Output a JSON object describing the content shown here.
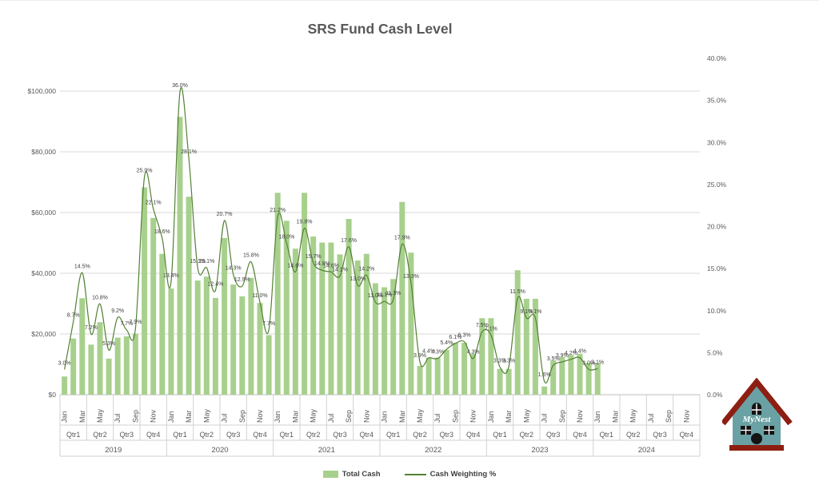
{
  "title": "SRS Fund Cash Level",
  "legend": {
    "items": [
      {
        "label": "Total Cash",
        "swatch": "bar-swatch-icon"
      },
      {
        "label": "Cash Weighting %",
        "swatch": "line-swatch-icon"
      }
    ]
  },
  "logo": {
    "text": "MyNest",
    "colors": {
      "body": "#6aa1a4",
      "roof": "#8c1e12",
      "window": "#141414",
      "pane": "#ffffff"
    }
  },
  "colors": {
    "bar_fill": "#a8d08d",
    "line_stroke": "#538135",
    "gridline": "#d9d9d9",
    "axis_line": "#bfbfbf",
    "axis_divider": "#d0d0d0",
    "axis_text": "#595959",
    "data_label_text": "#404040",
    "title_text": "#595959"
  },
  "chart_data": {
    "type": "combo",
    "title": "SRS Fund Cash Level",
    "grid": "horizontal",
    "legend_position": "bottom",
    "x_years": [
      "2019",
      "2020",
      "2021",
      "2022",
      "2023",
      "2024"
    ],
    "x_quarters": [
      "Qtr1",
      "Qtr2",
      "Qtr3",
      "Qtr4"
    ],
    "x_month_ticks": [
      "Jan",
      "Mar",
      "May",
      "Jul",
      "Sep",
      "Nov"
    ],
    "y_left": {
      "min": 0,
      "max": 100000,
      "tick_step": 20000,
      "tick_labels": [
        "$0",
        "$20,000",
        "$40,000",
        "$60,000",
        "$80,000",
        "$100,000"
      ]
    },
    "y_right": {
      "min": 0,
      "max": 40,
      "tick_step": 5,
      "tick_labels": [
        "0.0%",
        "5.0%",
        "10.0%",
        "15.0%",
        "20.0%",
        "25.0%",
        "30.0%",
        "35.0%",
        "40.0%"
      ]
    },
    "series": [
      {
        "name": "Total Cash",
        "type": "bar",
        "color": "#a8d08d",
        "unit": "$",
        "values": [
          6000,
          18500,
          31800,
          16500,
          23900,
          11900,
          18800,
          19200,
          20100,
          68300,
          58200,
          46400,
          35000,
          91500,
          65200,
          37600,
          38900,
          31900,
          51600,
          36300,
          32400,
          38500,
          30200,
          19600,
          66500,
          57300,
          48100,
          66500,
          52100,
          50100,
          50100,
          46200,
          57900,
          44200,
          46400,
          36700,
          35400,
          38100,
          63500,
          46800,
          9500,
          12200,
          12200,
          14800,
          17100,
          17100,
          13500,
          25200,
          25200,
          8500,
          8500,
          41000,
          31600,
          31600,
          2700,
          11300,
          12400,
          13100,
          13500,
          10500,
          10500
        ]
      },
      {
        "name": "Cash Weighting %",
        "type": "line",
        "color": "#538135",
        "unit": "%",
        "values": [
          3.0,
          8.7,
          14.5,
          7.2,
          10.8,
          5.3,
          9.2,
          7.7,
          7.9,
          25.9,
          22.1,
          18.6,
          13.4,
          36.0,
          28.1,
          15.1,
          15.1,
          12.4,
          20.7,
          14.3,
          12.9,
          15.8,
          11.0,
          7.7,
          21.2,
          18.0,
          14.6,
          19.8,
          15.7,
          14.8,
          14.6,
          14.1,
          17.6,
          13.0,
          14.2,
          11.0,
          11.1,
          11.3,
          17.9,
          13.3,
          3.9,
          4.4,
          4.3,
          5.4,
          6.1,
          6.3,
          4.3,
          7.5,
          7.1,
          3.3,
          3.3,
          11.5,
          9.1,
          9.1,
          1.6,
          3.5,
          3.9,
          4.2,
          4.4,
          3.0,
          3.1
        ],
        "point_labels": [
          "3.0%",
          "8.7%",
          "14.5%",
          "7.2%",
          "10.8%",
          "5.3%",
          "9.2%",
          "7.7%",
          "7.9%",
          "25.9%",
          "22.1%",
          "18.6%",
          "13.4%",
          "36.0%",
          "28.1%",
          "15.1%",
          "15.1%",
          "12.4%",
          "20.7%",
          "14.3%",
          "12.9%",
          "15.8%",
          "11.0%",
          "7.7%",
          "21.2%",
          "18.0%",
          "14.6%",
          "19.8%",
          "15.7%",
          "14.8%",
          "14.6%",
          "14.1%",
          "17.6%",
          "13.0%",
          "14.2%",
          "11.0%",
          "11.1%",
          "11.3%",
          "17.9%",
          "13.3%",
          "3.9%",
          "4.4%",
          "4.3%",
          "5.4%",
          "6.1%",
          "6.3%",
          "4.3%",
          "7.5%",
          "7.1%",
          "3.3%",
          "3.3%",
          "11.5%",
          "9.1%",
          "9.1%",
          "1.6%",
          "3.5%",
          "3.9%",
          "4.2%",
          "4.4%",
          "3.0%",
          "3.1%"
        ]
      }
    ]
  }
}
